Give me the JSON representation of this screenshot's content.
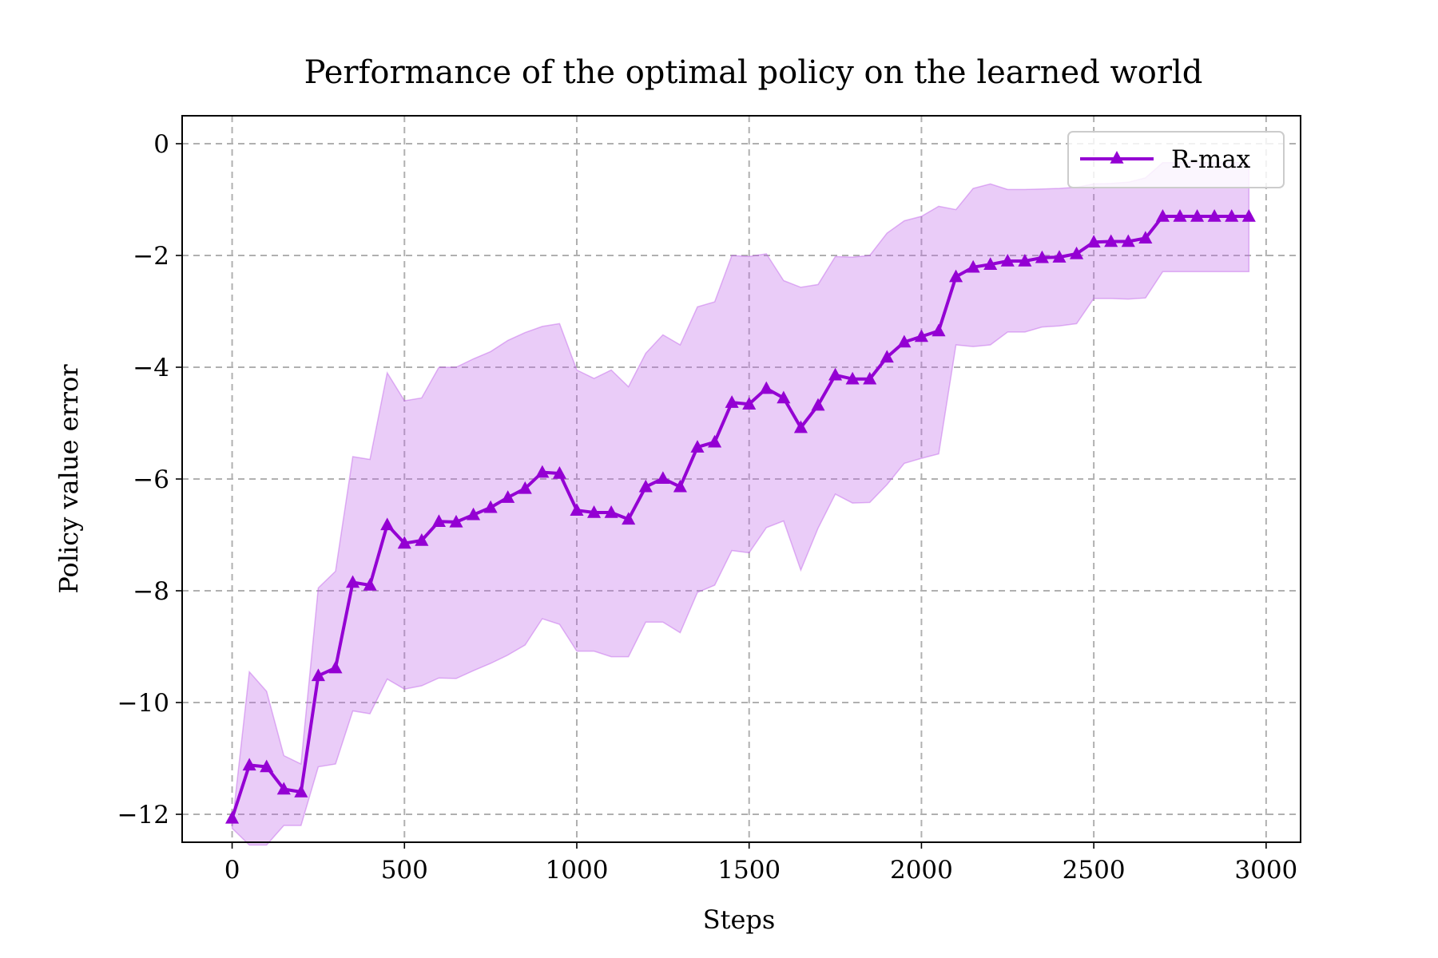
{
  "chart_data": {
    "type": "line",
    "title": "Performance of the optimal policy on the learned world",
    "xlabel": "Steps",
    "ylabel": "Policy value error",
    "xlim": [
      -145,
      3100
    ],
    "ylim": [
      -12.5,
      0.5
    ],
    "xticks": [
      0,
      500,
      1000,
      1500,
      2000,
      2500,
      3000
    ],
    "yticks": [
      0,
      -2,
      -4,
      -6,
      -8,
      -10,
      -12
    ],
    "xtick_labels": [
      "0",
      "500",
      "1000",
      "1500",
      "2000",
      "2500",
      "3000"
    ],
    "ytick_labels": [
      "0",
      "−2",
      "−4",
      "−6",
      "−8",
      "−10",
      "−12"
    ],
    "grid": true,
    "legend_position": "top-right",
    "series": [
      {
        "name": "R-max",
        "color": "#9400D3",
        "band_color": "#BF5FE8",
        "marker": "triangle",
        "x": [
          0,
          50,
          100,
          150,
          200,
          250,
          300,
          350,
          400,
          450,
          500,
          550,
          600,
          650,
          700,
          750,
          800,
          850,
          900,
          950,
          1000,
          1050,
          1100,
          1150,
          1200,
          1250,
          1300,
          1350,
          1400,
          1450,
          1500,
          1550,
          1600,
          1650,
          1700,
          1750,
          1800,
          1850,
          1900,
          1950,
          2000,
          2050,
          2100,
          2150,
          2200,
          2250,
          2300,
          2350,
          2400,
          2450,
          2500,
          2550,
          2600,
          2650,
          2700,
          2750,
          2800,
          2850,
          2900,
          2950
        ],
        "values": [
          -12.07,
          -11.12,
          -11.15,
          -11.55,
          -11.6,
          -9.52,
          -9.38,
          -7.85,
          -7.9,
          -6.82,
          -7.15,
          -7.1,
          -6.76,
          -6.77,
          -6.64,
          -6.51,
          -6.33,
          -6.17,
          -5.88,
          -5.9,
          -6.56,
          -6.6,
          -6.6,
          -6.72,
          -6.14,
          -5.99,
          -6.14,
          -5.43,
          -5.34,
          -4.63,
          -4.66,
          -4.38,
          -4.55,
          -5.08,
          -4.68,
          -4.14,
          -4.21,
          -4.21,
          -3.82,
          -3.55,
          -3.45,
          -3.35,
          -2.38,
          -2.21,
          -2.16,
          -2.1,
          -2.1,
          -2.04,
          -2.03,
          -1.97,
          -1.76,
          -1.75,
          -1.75,
          -1.69,
          -1.3,
          -1.3,
          -1.3,
          -1.3,
          -1.3,
          -1.3
        ],
        "upper": [
          -12.2,
          -9.45,
          -9.8,
          -10.95,
          -11.1,
          -7.95,
          -7.65,
          -5.6,
          -5.65,
          -4.1,
          -4.6,
          -4.55,
          -4.0,
          -4.0,
          -3.85,
          -3.72,
          -3.52,
          -3.38,
          -3.27,
          -3.22,
          -4.05,
          -4.2,
          -4.05,
          -4.35,
          -3.75,
          -3.42,
          -3.6,
          -2.92,
          -2.83,
          -2.0,
          -2.02,
          -1.97,
          -2.45,
          -2.57,
          -2.52,
          -2.02,
          -2.03,
          -2.0,
          -1.6,
          -1.38,
          -1.3,
          -1.12,
          -1.18,
          -0.8,
          -0.72,
          -0.82,
          -0.82,
          -0.81,
          -0.8,
          -0.78,
          -0.72,
          -0.71,
          -0.69,
          -0.61,
          -0.34,
          -0.34,
          -0.34,
          -0.34,
          -0.34,
          -0.34
        ],
        "lower": [
          -12.25,
          -12.55,
          -12.55,
          -12.2,
          -12.2,
          -11.15,
          -11.1,
          -10.15,
          -10.2,
          -9.58,
          -9.76,
          -9.7,
          -9.56,
          -9.57,
          -9.43,
          -9.3,
          -9.15,
          -8.97,
          -8.5,
          -8.6,
          -9.08,
          -9.08,
          -9.18,
          -9.18,
          -8.56,
          -8.56,
          -8.75,
          -8.03,
          -7.9,
          -7.28,
          -7.32,
          -6.87,
          -6.75,
          -7.63,
          -6.88,
          -6.27,
          -6.43,
          -6.42,
          -6.1,
          -5.72,
          -5.63,
          -5.55,
          -3.6,
          -3.63,
          -3.6,
          -3.37,
          -3.37,
          -3.28,
          -3.26,
          -3.22,
          -2.77,
          -2.77,
          -2.78,
          -2.76,
          -2.29,
          -2.29,
          -2.29,
          -2.29,
          -2.29,
          -2.29
        ]
      }
    ]
  }
}
